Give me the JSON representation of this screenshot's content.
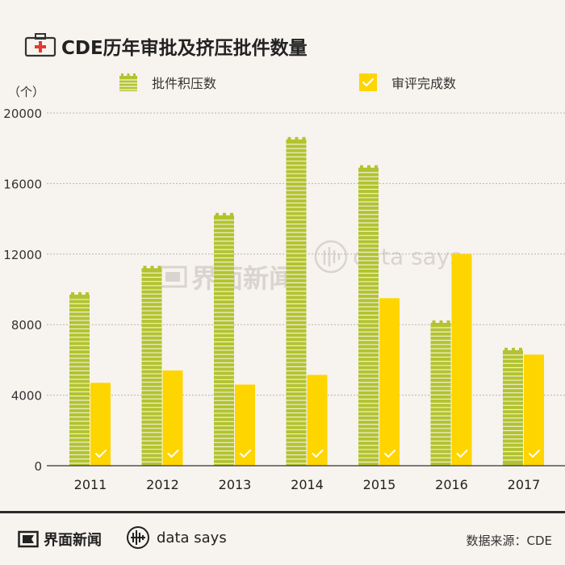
{
  "title": "CDE历年审批及挤压批件数量",
  "unit": "（个）",
  "legend": [
    {
      "label": "批件积压数",
      "color": "#b3c330"
    },
    {
      "label": "审评完成数",
      "color": "#ffd500"
    }
  ],
  "watermark": {
    "brand": "界面新闻",
    "tag": "data says"
  },
  "footer": {
    "brand": "界面新闻",
    "tag": "data says",
    "source": "数据来源：CDE"
  },
  "icons": {
    "title": "first-aid-kit-icon",
    "brand": "jiemian-logo-icon",
    "tag": "data-says-logo-icon",
    "check": "check-icon"
  },
  "chart_data": {
    "type": "bar",
    "categories": [
      "2011",
      "2012",
      "2013",
      "2014",
      "2015",
      "2016",
      "2017"
    ],
    "series": [
      {
        "name": "批件积压数",
        "values": [
          9700,
          11200,
          14200,
          18500,
          16900,
          8100,
          6550
        ],
        "color": "#b3c330"
      },
      {
        "name": "审评完成数",
        "values": [
          4700,
          5400,
          4600,
          5150,
          9500,
          12000,
          6300
        ],
        "color": "#ffd500"
      }
    ],
    "yticks": [
      0,
      4000,
      8000,
      12000,
      16000,
      20000
    ],
    "ylim": [
      0,
      20000
    ],
    "grid": true,
    "legend_position": "top"
  }
}
